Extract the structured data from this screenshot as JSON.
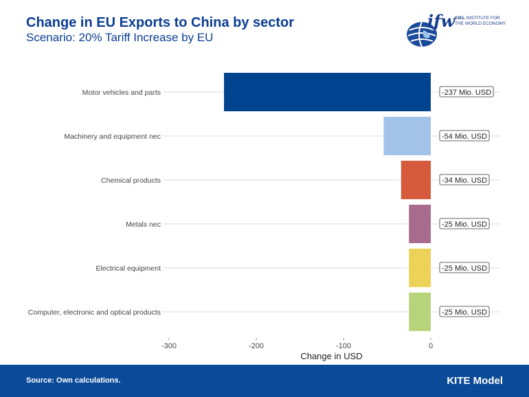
{
  "header": {
    "title": "Change in EU Exports to China by sector",
    "subtitle": "Scenario: 20% Tariff Increase by EU"
  },
  "logo": {
    "word": "ifw",
    "line1": "KIEL",
    "line1_rest": "INSTITUTE FOR",
    "line2": "THE WORLD ECONOMY"
  },
  "chart_data": {
    "type": "bar",
    "orientation": "horizontal",
    "categories": [
      "Motor vehicles and parts",
      "Machinery and equipment nec",
      "Chemical products",
      "Metals nec",
      "Electrical equipment",
      "Computer, electronic and optical products"
    ],
    "values": [
      -237,
      -54,
      -34,
      -25,
      -25,
      -25
    ],
    "data_labels": [
      "-237 Mio. USD",
      "-54 Mio. USD",
      "-34 Mio. USD",
      "-25 Mio. USD",
      "-25 Mio. USD",
      "-25 Mio. USD"
    ],
    "colors": [
      "#00438f",
      "#a3c4e8",
      "#d65a3c",
      "#a86b8e",
      "#ecd256",
      "#b8d47a"
    ],
    "xlabel": "Change in USD",
    "xlim": [
      -300,
      0
    ],
    "xticks": [
      -300,
      -200,
      -100,
      0
    ],
    "grid": true,
    "legend": "none"
  },
  "footer": {
    "source": "Source: Own calculations.",
    "model": "KITE Model"
  }
}
